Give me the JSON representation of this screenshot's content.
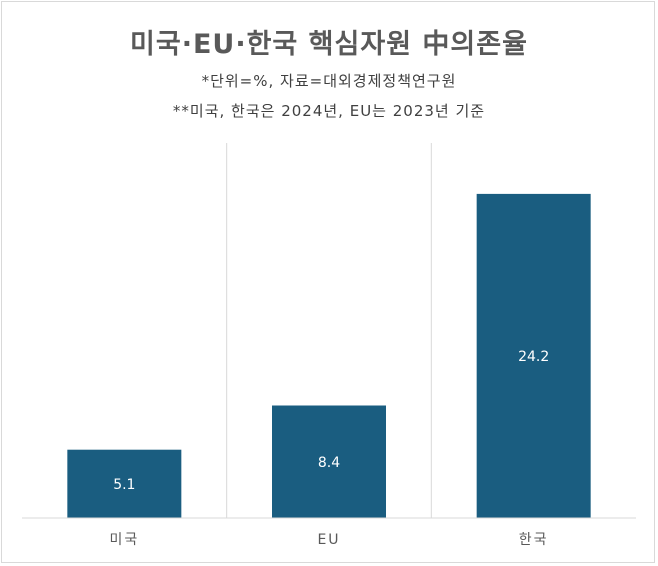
{
  "chart_data": {
    "type": "bar",
    "title": "미국·EU·한국 핵심자원 中의존율",
    "notes": [
      "*단위=%, 자료=대외경제정책연구원",
      "**미국, 한국은 2024년, EU는 2023년 기준"
    ],
    "categories": [
      "미국",
      "EU",
      "한국"
    ],
    "values": [
      5.1,
      8.4,
      24.2
    ],
    "value_labels": [
      "5.1",
      "8.4",
      "24.2"
    ],
    "xlabel": "",
    "ylabel": "",
    "ylim": [
      0,
      28
    ],
    "grid": "vertical separators",
    "legend": "none",
    "bar_color": "#1a5d80"
  }
}
